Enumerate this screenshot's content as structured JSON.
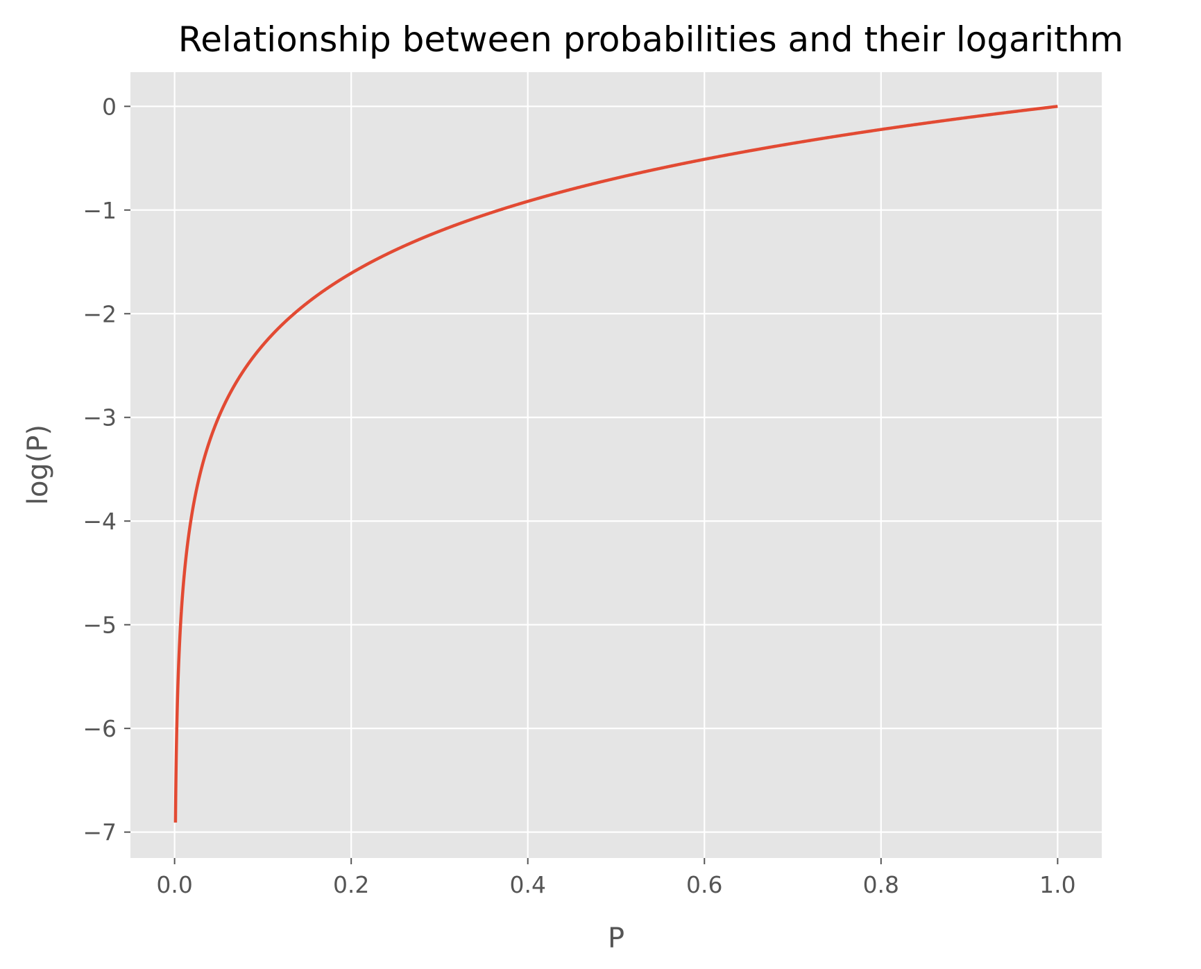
{
  "chart_data": {
    "type": "line",
    "title": "Relationship between probabilities and their logarithm",
    "xlabel": "P",
    "ylabel": "log(P)",
    "xlim": [
      -0.05,
      1.05
    ],
    "ylim": [
      -7.25,
      0.33
    ],
    "x_ticks": [
      0.0,
      0.2,
      0.4,
      0.6,
      0.8,
      1.0
    ],
    "x_tick_labels": [
      "0.0",
      "0.2",
      "0.4",
      "0.6",
      "0.8",
      "1.0"
    ],
    "y_ticks": [
      0,
      -1,
      -2,
      -3,
      -4,
      -5,
      -6,
      -7
    ],
    "y_tick_labels": [
      "0",
      "−1",
      "−2",
      "−3",
      "−4",
      "−5",
      "−6",
      "−7"
    ],
    "grid": true,
    "background_color": "#e5e5e5",
    "series": [
      {
        "color": "#e24a33",
        "function": "log(P)",
        "x_range": [
          0.001,
          1.0
        ]
      }
    ]
  }
}
